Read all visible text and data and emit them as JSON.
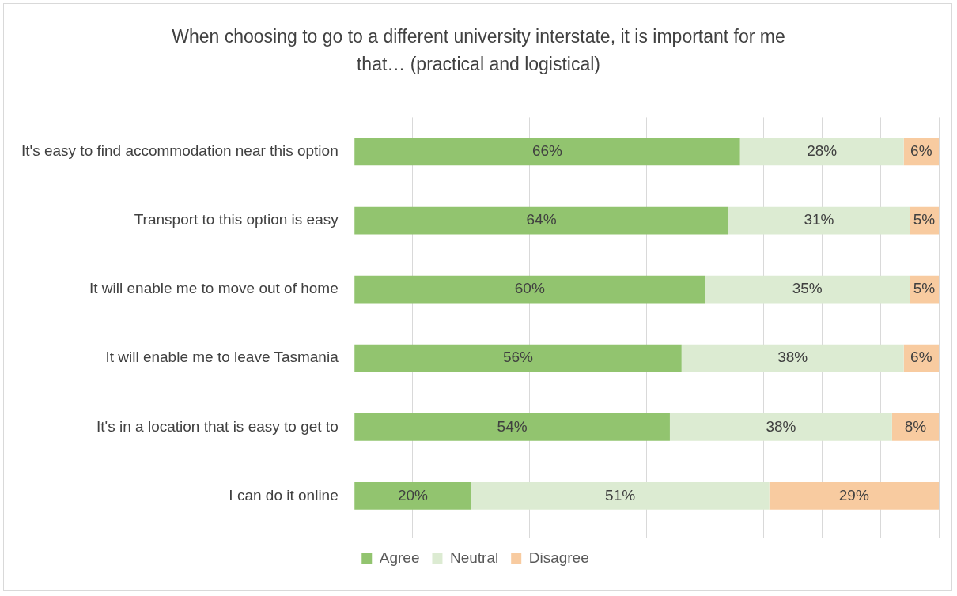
{
  "chart_data": {
    "type": "bar",
    "orientation": "horizontal",
    "stacked": true,
    "title": "When choosing to go to a different university interstate, it is important for me that… (practical and logistical)",
    "categories": [
      "It's easy to find accommodation near this option",
      "Transport to this option is easy",
      "It will enable me to move out of home",
      "It will enable me to leave Tasmania",
      "It's in a location that is easy to get to",
      "I can do it online"
    ],
    "series": [
      {
        "name": "Agree",
        "color": "#92c46f",
        "values": [
          66,
          64,
          60,
          56,
          54,
          20
        ],
        "value_labels": [
          "66%",
          "64%",
          "60%",
          "56%",
          "54%",
          "20%"
        ]
      },
      {
        "name": "Neutral",
        "color": "#dcebd2",
        "values": [
          28,
          31,
          35,
          38,
          38,
          51
        ],
        "value_labels": [
          "28%",
          "31%",
          "35%",
          "38%",
          "38%",
          "51%"
        ]
      },
      {
        "name": "Disagree",
        "color": "#f8cba0",
        "values": [
          6,
          5,
          5,
          6,
          8,
          29
        ],
        "value_labels": [
          "6%",
          "5%",
          "5%",
          "6%",
          "8%",
          "29%"
        ]
      }
    ],
    "xlim": [
      0,
      100
    ],
    "xticks": [
      {
        "value": 0,
        "label": null
      },
      {
        "value": 10,
        "label": null
      },
      {
        "value": 20,
        "label": null
      },
      {
        "value": 30,
        "label": null
      },
      {
        "value": 40,
        "label": null
      },
      {
        "value": 50,
        "label": null
      },
      {
        "value": 60,
        "label": null
      },
      {
        "value": 70,
        "label": null
      },
      {
        "value": 80,
        "label": null
      },
      {
        "value": 90,
        "label": null
      },
      {
        "value": 100,
        "label": null
      }
    ],
    "grid": "x",
    "legend": "bottom",
    "tick_labels": "y"
  }
}
